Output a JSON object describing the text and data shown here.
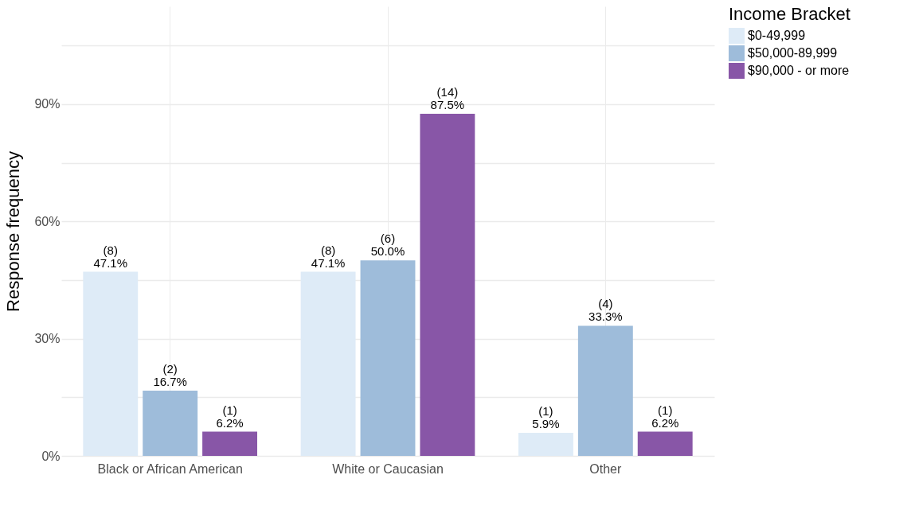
{
  "chart_data": {
    "type": "bar",
    "ylabel": "Response frequency",
    "legend_title": "Income Bracket",
    "categories": [
      "Black or African American",
      "White or Caucasian",
      "Other"
    ],
    "series": [
      {
        "name": "$0-49,999",
        "color": "#deebf7",
        "values": [
          47.1,
          47.1,
          5.9
        ],
        "value_labels": [
          "(8)\n47.1%",
          "(8)\n47.1%",
          "(1)\n5.9%"
        ]
      },
      {
        "name": "$50,000-89,999",
        "color": "#9ebcda",
        "values": [
          16.7,
          50.0,
          33.3
        ],
        "value_labels": [
          "(2)\n16.7%",
          "(6)\n50.0%",
          "(4)\n33.3%"
        ]
      },
      {
        "name": "$90,000 - or more",
        "color": "#8856a7",
        "values": [
          6.2,
          87.5,
          6.2
        ],
        "value_labels": [
          "(1)\n6.2%",
          "(14)\n87.5%",
          "(1)\n6.2%"
        ]
      }
    ],
    "ylim": [
      0,
      115
    ],
    "yticks": [
      {
        "value": 0,
        "label": "0%"
      },
      {
        "value": 15,
        "label": null
      },
      {
        "value": 30,
        "label": "30%"
      },
      {
        "value": 45,
        "label": null
      },
      {
        "value": 60,
        "label": "60%"
      },
      {
        "value": 75,
        "label": null
      },
      {
        "value": 90,
        "label": "90%"
      },
      {
        "value": 105,
        "label": null
      }
    ],
    "grid": true,
    "legend": "right"
  }
}
